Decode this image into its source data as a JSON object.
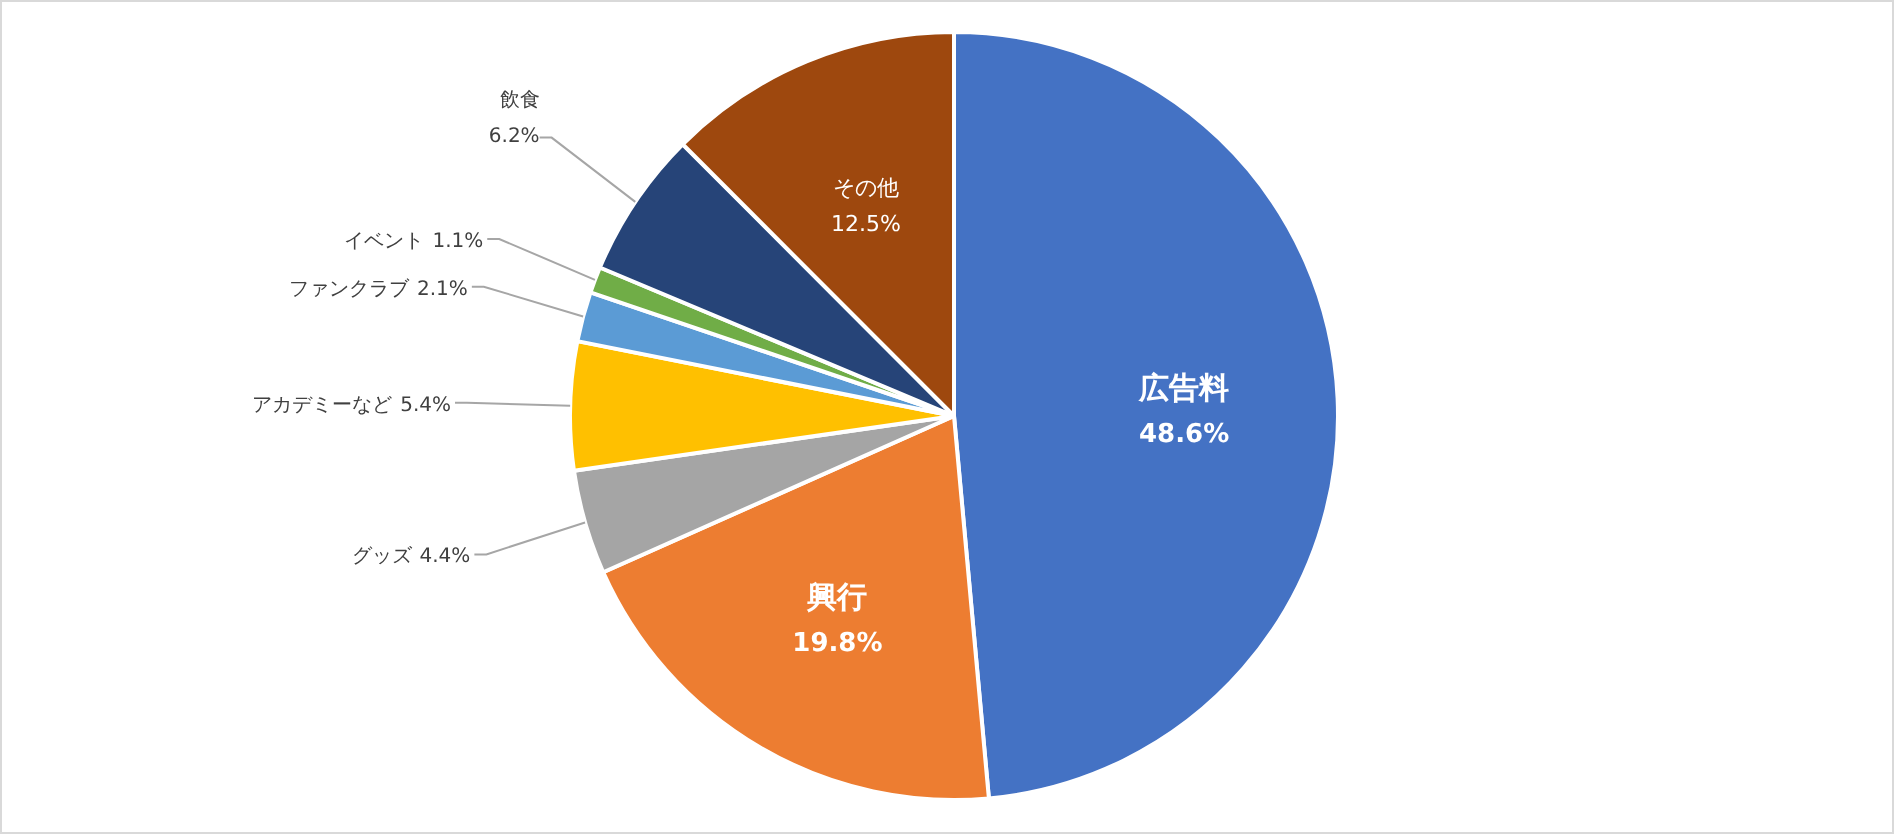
{
  "chart_data": {
    "type": "pie",
    "categories": [
      "広告料",
      "興行",
      "グッズ",
      "アカデミーなど",
      "ファンクラブ",
      "イベント",
      "飲食",
      "その他"
    ],
    "values": [
      48.6,
      19.8,
      4.4,
      5.4,
      2.1,
      1.1,
      6.2,
      12.5
    ],
    "colors": [
      "#4472c4",
      "#ed7d31",
      "#a5a5a5",
      "#ffc000",
      "#5b9bd5",
      "#70ad47",
      "#264478",
      "#9e480e"
    ],
    "value_labels": [
      "48.6%",
      "19.8%",
      "4.4%",
      "5.4%",
      "2.1%",
      "1.1%",
      "6.2%",
      "12.5%"
    ],
    "legend": false
  }
}
